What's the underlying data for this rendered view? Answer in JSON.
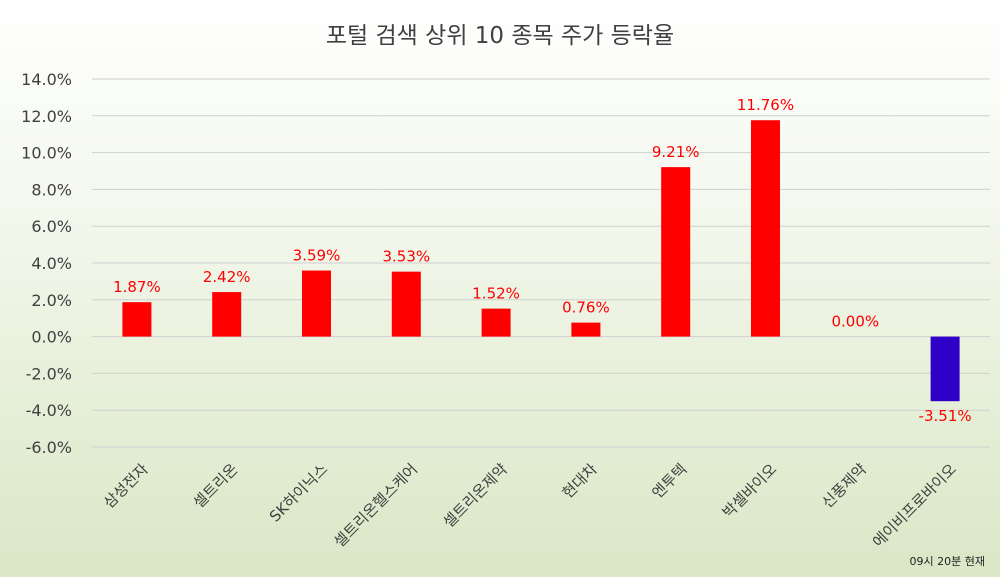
{
  "chart_data": {
    "type": "bar",
    "title": "포털 검색 상위 10 종목 주가 등락율",
    "note": "09시 20분 현재",
    "categories": [
      "삼성전자",
      "셀트리온",
      "SK하이닉스",
      "셀트리온헬스케어",
      "셀트리온제약",
      "현대차",
      "엔투텍",
      "박셀바이오",
      "신풍제약",
      "에이비프로바이오"
    ],
    "values": [
      1.87,
      2.42,
      3.59,
      3.53,
      1.52,
      0.76,
      9.21,
      11.76,
      0.0,
      -3.51
    ],
    "data_labels": [
      "1.87%",
      "2.42%",
      "3.59%",
      "3.53%",
      "1.52%",
      "0.76%",
      "9.21%",
      "11.76%",
      "0.00%",
      "-3.51%"
    ],
    "yticks": [
      14,
      12,
      10,
      8,
      6,
      4,
      2,
      0,
      -2,
      -4,
      -6
    ],
    "ytick_labels": [
      "14.0%",
      "12.0%",
      "10.0%",
      "8.0%",
      "6.0%",
      "4.0%",
      "2.0%",
      "0.0%",
      "-2.0%",
      "-4.0%",
      "-6.0%"
    ],
    "ylim": [
      -6,
      14
    ],
    "xlabel": "",
    "ylabel": "",
    "grid": true,
    "legend": "none",
    "colors": {
      "positive": "#ff0000",
      "negative": "#2f00c8",
      "label": "#ff0000",
      "grid": "#d0d0d0",
      "text": "#404040"
    }
  }
}
